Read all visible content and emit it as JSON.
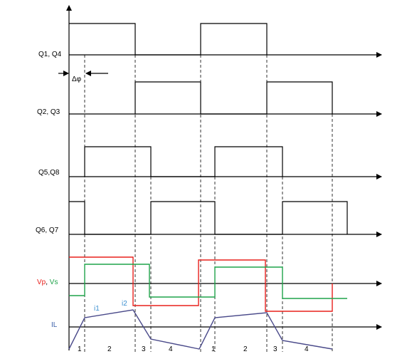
{
  "signals": {
    "q1q4": "Q1, Q4",
    "q2q3": "Q2, Q3",
    "q5q8": "Q5,Q8",
    "q6q7": "Q6, Q7",
    "vp": "Vp",
    "comma": ", ",
    "vs": "Vs",
    "il": "IL"
  },
  "phase_shift": "Δφ",
  "current_points": {
    "i1": "i1",
    "i2": "i2"
  },
  "intervals": [
    "1",
    "2",
    "3",
    "4",
    "1",
    "2",
    "3",
    "4"
  ],
  "colors": {
    "vp_waveform": "#e8201c",
    "vs_waveform": "#1fa34a",
    "il_waveform": "#4a4a8a",
    "vp_label": "#e8201c",
    "vs_label": "#1fa34a",
    "il_label": "#3a5fa8",
    "current_point_label": "#3a8fd0"
  }
}
